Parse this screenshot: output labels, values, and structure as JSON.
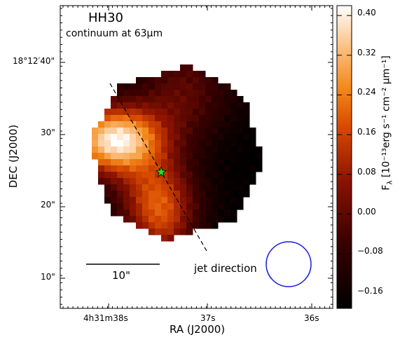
{
  "chart_data": {
    "type": "heatmap",
    "title": "HH30",
    "subtitle": "continuum at 63μm",
    "xlabel": "RA (J2000)",
    "ylabel": "DEC (J2000)",
    "x_ticks": [
      "4h31m38s",
      "37s",
      "36s"
    ],
    "y_ticks": [
      "10\"",
      "20\"",
      "30\"",
      "18°12′40\""
    ],
    "colorbar": {
      "label_main": "F",
      "label_sub": "λ",
      "label_unit": "[10⁻¹³erg s⁻¹ cm⁻² μm⁻¹]",
      "ticks": [
        "0.40",
        "0.32",
        "0.24",
        "0.16",
        "0.08",
        "0.00",
        "−0.08",
        "−0.16"
      ],
      "tick_values": [
        0.4,
        0.32,
        0.24,
        0.16,
        0.08,
        0.0,
        -0.08,
        -0.16
      ],
      "range": [
        -0.19,
        0.42
      ],
      "colormap": "gist_heat"
    },
    "scalebar_label": "10\"",
    "jet_label": "jet direction",
    "star_color": "#22e622",
    "beam_color": "#1a1adf",
    "jet_line_color": "#000000",
    "notes": "Rotated square map of 63μm continuum flux; bright lobe north-east of the star, fainter emission elsewhere."
  }
}
